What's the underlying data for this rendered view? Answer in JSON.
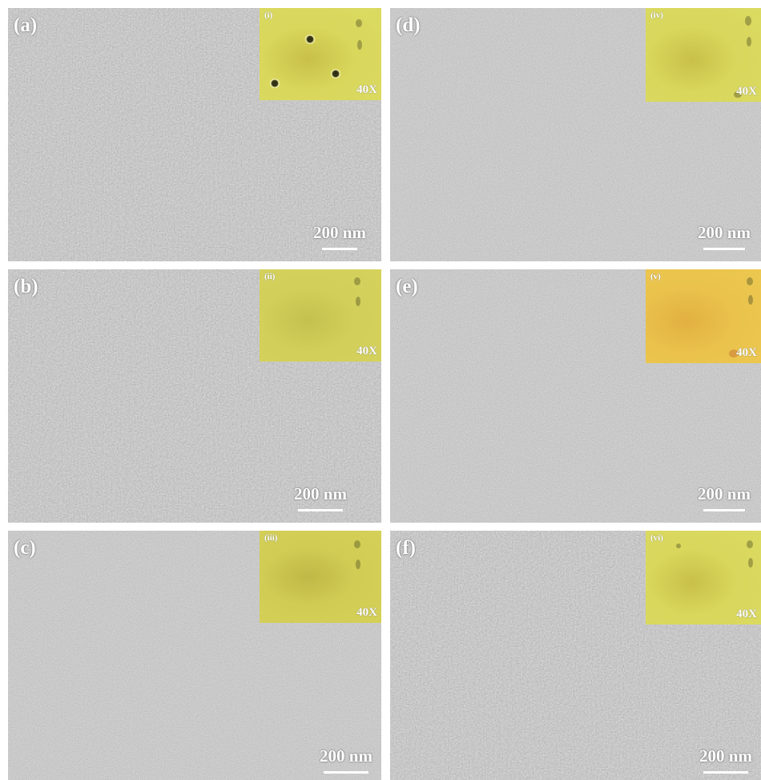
{
  "panels": [
    {
      "label": "(a)",
      "inset_tag": "(i)",
      "magnification": "40X",
      "scale_label": "200 nm",
      "gray": "#8e8e8e",
      "inset_color": "#d8d65e"
    },
    {
      "label": "(b)",
      "inset_tag": "(ii)",
      "magnification": "40X",
      "scale_label": "200 nm",
      "gray": "#8b8b8b",
      "inset_color": "#d2d05a"
    },
    {
      "label": "(c)",
      "inset_tag": "(iii)",
      "magnification": "40X",
      "scale_label": "200 nm",
      "gray": "#8c8c8c",
      "inset_color": "#d4cf54"
    },
    {
      "label": "(d)",
      "inset_tag": "(iv)",
      "magnification": "40X",
      "scale_label": "200 nm",
      "gray": "#8f8f8f",
      "inset_color": "#d6d05a"
    },
    {
      "label": "(e)",
      "inset_tag": "(v)",
      "magnification": "40X",
      "scale_label": "200 nm",
      "gray": "#939393",
      "inset_color": "#e6c548"
    },
    {
      "label": "(f)",
      "inset_tag": "(vi)",
      "magnification": "40X",
      "scale_label": "200 nm",
      "gray": "#8e8e8e",
      "inset_color": "#d8d25a"
    }
  ]
}
